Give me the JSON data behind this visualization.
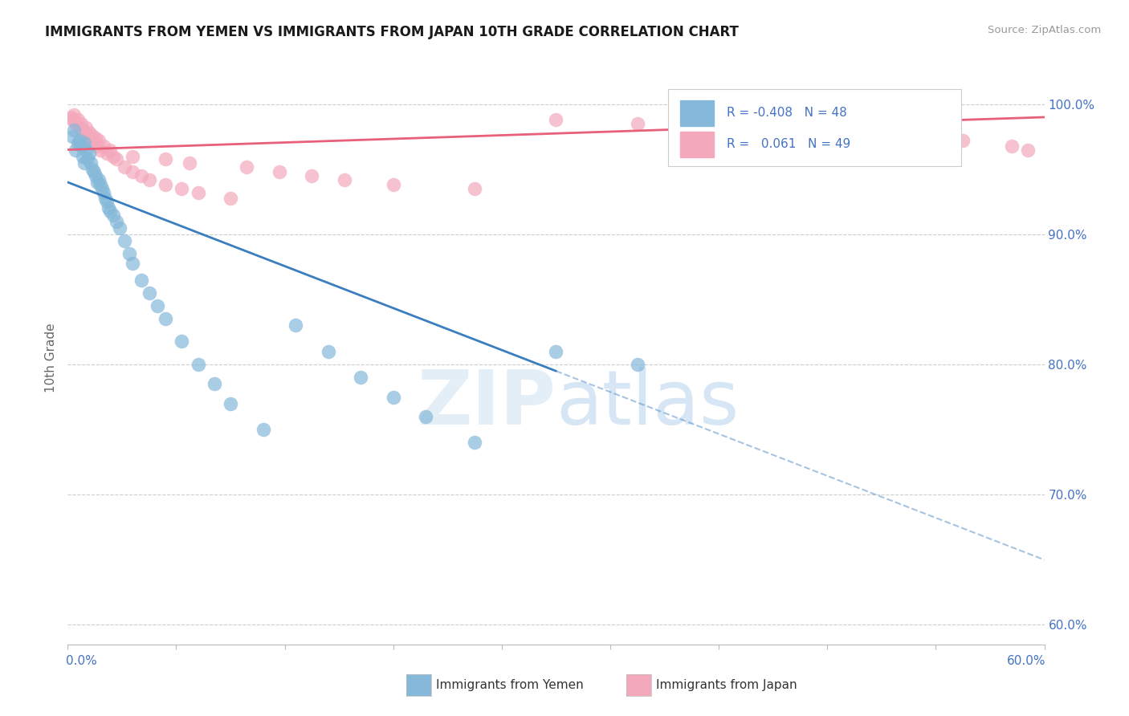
{
  "title": "IMMIGRANTS FROM YEMEN VS IMMIGRANTS FROM JAPAN 10TH GRADE CORRELATION CHART",
  "source": "Source: ZipAtlas.com",
  "ylabel": "10th Grade",
  "ytick_labels": [
    "60.0%",
    "70.0%",
    "80.0%",
    "90.0%",
    "100.0%"
  ],
  "ytick_vals": [
    0.6,
    0.7,
    0.8,
    0.9,
    1.0
  ],
  "xlim": [
    0.0,
    0.6
  ],
  "ylim": [
    0.585,
    1.025
  ],
  "legend_r_yemen": "-0.408",
  "legend_n_yemen": "48",
  "legend_r_japan": "0.061",
  "legend_n_japan": "49",
  "color_yemen": "#85b8d9",
  "color_japan": "#f4a8bb",
  "trend_color_yemen": "#3a7ebf",
  "trend_color_japan": "#e8607a",
  "watermark_zip": "ZIP",
  "watermark_atlas": "atlas",
  "background": "#ffffff",
  "yemen_x": [
    0.003,
    0.004,
    0.005,
    0.006,
    0.007,
    0.008,
    0.009,
    0.01,
    0.01,
    0.011,
    0.012,
    0.013,
    0.014,
    0.015,
    0.016,
    0.017,
    0.018,
    0.019,
    0.02,
    0.021,
    0.022,
    0.023,
    0.024,
    0.025,
    0.026,
    0.028,
    0.03,
    0.032,
    0.035,
    0.038,
    0.04,
    0.045,
    0.05,
    0.055,
    0.06,
    0.07,
    0.08,
    0.09,
    0.1,
    0.12,
    0.14,
    0.16,
    0.18,
    0.2,
    0.22,
    0.25,
    0.3,
    0.35
  ],
  "yemen_y": [
    0.975,
    0.98,
    0.965,
    0.97,
    0.972,
    0.968,
    0.96,
    0.955,
    0.97,
    0.965,
    0.958,
    0.962,
    0.955,
    0.95,
    0.948,
    0.945,
    0.94,
    0.942,
    0.938,
    0.935,
    0.932,
    0.928,
    0.925,
    0.92,
    0.918,
    0.915,
    0.91,
    0.905,
    0.895,
    0.885,
    0.878,
    0.865,
    0.855,
    0.845,
    0.835,
    0.818,
    0.8,
    0.785,
    0.77,
    0.75,
    0.83,
    0.81,
    0.79,
    0.775,
    0.76,
    0.74,
    0.81,
    0.8
  ],
  "japan_x": [
    0.002,
    0.003,
    0.004,
    0.005,
    0.006,
    0.007,
    0.008,
    0.009,
    0.01,
    0.011,
    0.012,
    0.013,
    0.014,
    0.015,
    0.016,
    0.017,
    0.018,
    0.019,
    0.02,
    0.022,
    0.024,
    0.026,
    0.028,
    0.03,
    0.035,
    0.04,
    0.045,
    0.05,
    0.06,
    0.07,
    0.08,
    0.1,
    0.11,
    0.13,
    0.15,
    0.17,
    0.2,
    0.25,
    0.3,
    0.35,
    0.4,
    0.45,
    0.5,
    0.55,
    0.58,
    0.59,
    0.04,
    0.06,
    0.075
  ],
  "japan_y": [
    0.99,
    0.988,
    0.992,
    0.985,
    0.988,
    0.982,
    0.985,
    0.98,
    0.978,
    0.982,
    0.975,
    0.978,
    0.972,
    0.976,
    0.97,
    0.974,
    0.968,
    0.972,
    0.965,
    0.968,
    0.962,
    0.965,
    0.96,
    0.958,
    0.952,
    0.948,
    0.945,
    0.942,
    0.938,
    0.935,
    0.932,
    0.928,
    0.952,
    0.948,
    0.945,
    0.942,
    0.938,
    0.935,
    0.988,
    0.985,
    0.982,
    0.978,
    0.975,
    0.972,
    0.968,
    0.965,
    0.96,
    0.958,
    0.955
  ],
  "trend_yemen_x0": 0.0,
  "trend_yemen_y0": 0.94,
  "trend_yemen_x1": 0.3,
  "trend_yemen_y1": 0.795,
  "trend_dash_x0": 0.3,
  "trend_dash_y0": 0.795,
  "trend_dash_x1": 0.6,
  "trend_dash_y1": 0.65,
  "trend_japan_x0": 0.0,
  "trend_japan_y0": 0.965,
  "trend_japan_x1": 0.6,
  "trend_japan_y1": 0.99
}
